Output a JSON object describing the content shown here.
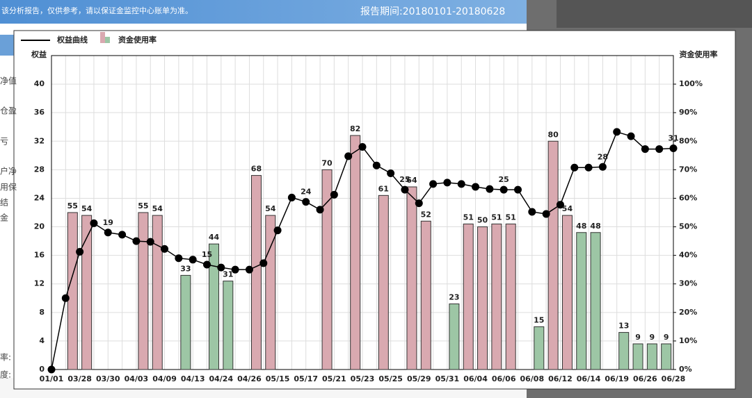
{
  "background": {
    "banner_left": "该分析报告，仅供参考，请以保证金监控中心账单为准。",
    "banner_right": "报告期间:20180101-20180628",
    "side_labels": [
      "净值",
      "仓盈",
      "亏",
      "户净",
      "用保",
      "结",
      "金",
      "率:",
      "度:"
    ]
  },
  "chart_data": {
    "type": "combo",
    "y_label": "权益",
    "y2_label": "资金使用率",
    "categories": [
      "01/01",
      null,
      "03/28",
      null,
      "03/30",
      null,
      "04/03",
      null,
      "04/09",
      null,
      "04/13",
      null,
      "04/24",
      null,
      "04/26",
      null,
      "05/15",
      null,
      "05/17",
      null,
      "05/21",
      null,
      "05/23",
      null,
      "05/25",
      null,
      "05/29",
      null,
      "05/31",
      null,
      "06/04",
      null,
      "06/06",
      null,
      "06/08",
      null,
      "06/12",
      null,
      "06/14",
      null,
      "06/19",
      null,
      "06/26",
      null,
      "06/28"
    ],
    "series": [
      {
        "name": "权益曲线",
        "type": "line",
        "color": "#000000",
        "values": [
          0,
          10,
          16.5,
          20.5,
          19.2,
          18.9,
          18.0,
          17.9,
          16.9,
          15.6,
          15.4,
          14.7,
          14.3,
          14.0,
          14.0,
          14.9,
          19.5,
          24.1,
          23.5,
          22.4,
          24.5,
          29.9,
          31.2,
          28.6,
          27.5,
          25.2,
          23.3,
          26.0,
          26.2,
          26.0,
          25.6,
          25.3,
          25.2,
          25.2,
          22.1,
          21.8,
          23.1,
          28.3,
          28.3,
          28.4,
          33.3,
          32.7,
          30.9,
          30.9,
          31.0
        ],
        "value_labels": [
          null,
          null,
          null,
          null,
          "19",
          null,
          null,
          null,
          null,
          null,
          null,
          "15",
          null,
          null,
          null,
          null,
          null,
          null,
          "24",
          null,
          null,
          null,
          null,
          null,
          null,
          "25",
          null,
          null,
          null,
          null,
          null,
          null,
          "25",
          null,
          null,
          null,
          null,
          null,
          null,
          "28",
          null,
          null,
          null,
          null,
          "31"
        ]
      },
      {
        "name": "资金使用率",
        "type": "bar",
        "axis": "y2",
        "color": "#d9a9b0",
        "values": [
          null,
          55,
          54,
          null,
          null,
          null,
          55,
          54,
          null,
          null,
          null,
          null,
          null,
          null,
          68,
          54,
          null,
          null,
          null,
          70,
          null,
          82,
          null,
          61,
          null,
          64,
          52,
          null,
          null,
          51,
          50,
          51,
          51,
          null,
          null,
          80,
          54,
          null,
          null,
          null,
          null,
          null,
          null,
          null,
          null
        ]
      },
      {
        "type": "bar",
        "axis": "y2",
        "color": "#9dc6a5",
        "values": [
          null,
          null,
          null,
          null,
          null,
          null,
          null,
          null,
          null,
          33,
          null,
          44,
          31,
          null,
          null,
          null,
          null,
          null,
          null,
          null,
          null,
          null,
          null,
          null,
          null,
          null,
          null,
          null,
          23,
          null,
          null,
          null,
          null,
          null,
          15,
          null,
          null,
          48,
          48,
          null,
          13,
          9,
          9,
          9,
          null
        ]
      }
    ],
    "ylim": [
      0,
      44
    ],
    "yticks": [
      0,
      4,
      8,
      12,
      16,
      20,
      24,
      28,
      32,
      36,
      40
    ],
    "y2lim": [
      0,
      110
    ],
    "y2ticks": [
      {
        "value": 0,
        "label": "0%"
      },
      {
        "value": 10,
        "label": "10%"
      },
      {
        "value": 20,
        "label": "20%"
      },
      {
        "value": 30,
        "label": "30%"
      },
      {
        "value": 40,
        "label": "40%"
      },
      {
        "value": 50,
        "label": "50%"
      },
      {
        "value": 60,
        "label": "60%"
      },
      {
        "value": 70,
        "label": "70%"
      },
      {
        "value": 80,
        "label": "80%"
      },
      {
        "value": 90,
        "label": "90%"
      },
      {
        "value": 100,
        "label": "100%"
      }
    ],
    "grid": true
  }
}
